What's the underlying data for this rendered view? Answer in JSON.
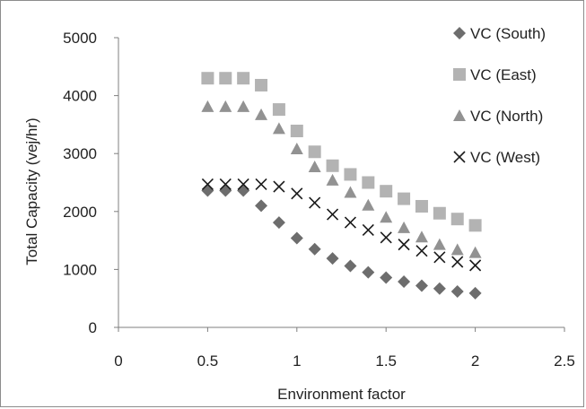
{
  "chart_data": {
    "type": "scatter",
    "title": "",
    "xlabel": "Environment factor",
    "ylabel": "Total Capacity (vej/hr)",
    "xlim": [
      0,
      2.5
    ],
    "ylim": [
      0,
      5000
    ],
    "x_ticks": [
      0,
      0.5,
      1,
      1.5,
      2,
      2.5
    ],
    "y_ticks": [
      0,
      1000,
      2000,
      3000,
      4000,
      5000
    ],
    "x_tick_labels": [
      "0",
      "0.5",
      "1",
      "1.5",
      "2",
      "2.5"
    ],
    "y_tick_labels": [
      "0",
      "1000",
      "2000",
      "3000",
      "4000",
      "5000"
    ],
    "grid": false,
    "legend_position": "top-right",
    "x": [
      0.5,
      0.6,
      0.7,
      0.8,
      0.9,
      1.0,
      1.1,
      1.2,
      1.3,
      1.4,
      1.5,
      1.6,
      1.7,
      1.8,
      1.9,
      2.0
    ],
    "series": [
      {
        "name": "VC (South)",
        "marker": "diamond",
        "color": "#6d6d6d",
        "values": [
          2360,
          2360,
          2360,
          2100,
          1810,
          1540,
          1350,
          1190,
          1060,
          950,
          860,
          790,
          720,
          670,
          620,
          590
        ]
      },
      {
        "name": "VC (East)",
        "marker": "square",
        "color": "#b3b3b3",
        "values": [
          4300,
          4300,
          4300,
          4180,
          3760,
          3390,
          3030,
          2790,
          2640,
          2500,
          2350,
          2220,
          2090,
          1970,
          1870,
          1760
        ]
      },
      {
        "name": "VC (North)",
        "marker": "triangle",
        "color": "#929292",
        "values": [
          3810,
          3810,
          3810,
          3670,
          3430,
          3080,
          2770,
          2540,
          2330,
          2110,
          1900,
          1720,
          1560,
          1430,
          1340,
          1290
        ]
      },
      {
        "name": "VC (West)",
        "marker": "x",
        "color": "#1a1a1a",
        "values": [
          2470,
          2470,
          2470,
          2470,
          2430,
          2310,
          2150,
          1950,
          1810,
          1680,
          1550,
          1430,
          1320,
          1210,
          1130,
          1070
        ]
      }
    ]
  }
}
